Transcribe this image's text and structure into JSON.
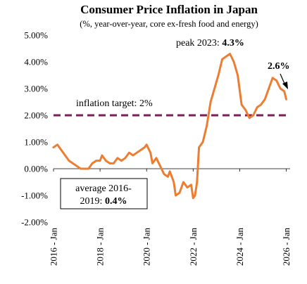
{
  "chart_data": {
    "type": "line",
    "title": "Consumer Price Inflation in Japan",
    "subtitle": "(%, year-over-year, core ex-fresh food and energy)",
    "ylim": [
      -2.0,
      5.0
    ],
    "y_ticks": [
      "5.00%",
      "4.00%",
      "3.00%",
      "2.00%",
      "1.00%",
      "0.00%",
      "-1.00%",
      "-2.00%"
    ],
    "x_ticks": [
      "2016 - Jan",
      "2018 - Jan",
      "2020 - Jan",
      "2022 - Jan",
      "2024 - Jan",
      "2026 - Jan"
    ],
    "x_range": [
      "2016-01",
      "2026-03"
    ],
    "series": [
      {
        "color": "#ed7d31",
        "points": [
          [
            "2016-01",
            0.8
          ],
          [
            "2016-03",
            0.9
          ],
          [
            "2016-05",
            0.7
          ],
          [
            "2016-07",
            0.5
          ],
          [
            "2016-09",
            0.3
          ],
          [
            "2016-11",
            0.2
          ],
          [
            "2017-01",
            0.1
          ],
          [
            "2017-03",
            0.0
          ],
          [
            "2017-05",
            0.0
          ],
          [
            "2017-07",
            0.0
          ],
          [
            "2017-09",
            0.2
          ],
          [
            "2017-11",
            0.3
          ],
          [
            "2018-01",
            0.3
          ],
          [
            "2018-02",
            0.5
          ],
          [
            "2018-04",
            0.3
          ],
          [
            "2018-06",
            0.2
          ],
          [
            "2018-08",
            0.2
          ],
          [
            "2018-10",
            0.4
          ],
          [
            "2018-12",
            0.3
          ],
          [
            "2019-02",
            0.4
          ],
          [
            "2019-04",
            0.6
          ],
          [
            "2019-06",
            0.5
          ],
          [
            "2019-08",
            0.6
          ],
          [
            "2019-10",
            0.7
          ],
          [
            "2019-12",
            0.8
          ],
          [
            "2020-01",
            0.9
          ],
          [
            "2020-03",
            0.6
          ],
          [
            "2020-04",
            0.2
          ],
          [
            "2020-06",
            0.4
          ],
          [
            "2020-08",
            0.1
          ],
          [
            "2020-10",
            -0.2
          ],
          [
            "2020-12",
            -0.3
          ],
          [
            "2021-01",
            -0.1
          ],
          [
            "2021-03",
            -0.5
          ],
          [
            "2021-04",
            -1.0
          ],
          [
            "2021-06",
            -0.9
          ],
          [
            "2021-08",
            -0.5
          ],
          [
            "2021-10",
            -0.7
          ],
          [
            "2021-12",
            -0.6
          ],
          [
            "2022-01",
            -1.1
          ],
          [
            "2022-02",
            -1.0
          ],
          [
            "2022-03",
            -0.5
          ],
          [
            "2022-04",
            0.8
          ],
          [
            "2022-06",
            1.0
          ],
          [
            "2022-08",
            1.6
          ],
          [
            "2022-10",
            2.5
          ],
          [
            "2022-12",
            3.0
          ],
          [
            "2023-02",
            3.5
          ],
          [
            "2023-04",
            4.1
          ],
          [
            "2023-06",
            4.2
          ],
          [
            "2023-08",
            4.3
          ],
          [
            "2023-10",
            4.0
          ],
          [
            "2023-12",
            3.5
          ],
          [
            "2024-02",
            2.4
          ],
          [
            "2024-04",
            2.2
          ],
          [
            "2024-06",
            1.9
          ],
          [
            "2024-08",
            2.0
          ],
          [
            "2024-10",
            2.3
          ],
          [
            "2024-12",
            2.4
          ],
          [
            "2025-02",
            2.6
          ],
          [
            "2025-04",
            3.0
          ],
          [
            "2025-06",
            3.4
          ],
          [
            "2025-08",
            3.3
          ],
          [
            "2025-10",
            3.0
          ],
          [
            "2025-12",
            2.9
          ],
          [
            "2026-01",
            2.6
          ]
        ]
      }
    ],
    "reference_line": {
      "value": 2.0,
      "color": "#7f1c5a"
    },
    "annotations": {
      "target_label": "inflation target: 2%",
      "peak_label": "peak 2023: ",
      "peak_value": "4.3%",
      "latest_value": "2.6%",
      "avg_label": "average 2016-",
      "avg_label2": "2019: ",
      "avg_value": "0.4%"
    },
    "grid": false,
    "legend": "none"
  }
}
